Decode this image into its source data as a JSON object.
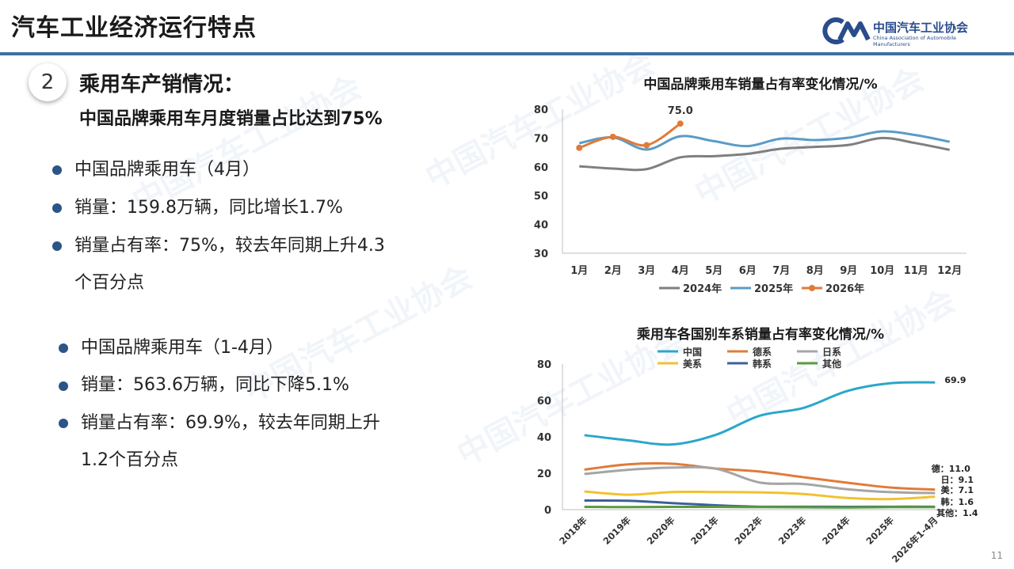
{
  "header": {
    "title": "汽车工业经济运行特点",
    "logo_cn": "中国汽车工业协会",
    "logo_en": "China Association of Automobile Manufacturers"
  },
  "section": {
    "number": "2",
    "title": "乘用车产销情况：",
    "subtitle": "中国品牌乘用车月度销量占比达到75%"
  },
  "bullets_group1": [
    "中国品牌乘用车（4月）",
    "销量：159.8万辆，同比增长1.7%",
    "销量占有率：75%，较去年同期上升4.3",
    "个百分点"
  ],
  "bullets_group2": [
    "中国品牌乘用车（1-4月）",
    "销量：563.6万辆，同比下降5.1%",
    "销量占有率：69.9%，较去年同期上升",
    "1.2个百分点"
  ],
  "watermark": "中国汽车工业协会",
  "page_number": "11",
  "chart_data": [
    {
      "type": "line",
      "title": "中国品牌乘用车销量占有率变化情况/%",
      "categories": [
        "1月",
        "2月",
        "3月",
        "4月",
        "5月",
        "6月",
        "7月",
        "8月",
        "9月",
        "10月",
        "11月",
        "12月"
      ],
      "ylim": [
        30,
        80
      ],
      "yticks": [
        30,
        40,
        50,
        60,
        70,
        80
      ],
      "legend_position": "bottom",
      "series": [
        {
          "name": "2024年",
          "color": "#7f7f7f",
          "marker": false,
          "values": [
            60.2,
            59.4,
            59.2,
            63.3,
            63.7,
            64.5,
            66.3,
            66.9,
            67.6,
            70.0,
            68.2,
            65.9
          ]
        },
        {
          "name": "2025年",
          "color": "#5b9bc5",
          "marker": false,
          "values": [
            68.2,
            70.2,
            66.0,
            70.6,
            68.9,
            67.2,
            69.8,
            69.3,
            70.1,
            72.3,
            71.0,
            68.7
          ]
        },
        {
          "name": "2026年",
          "color": "#e07b39",
          "marker": true,
          "values": [
            66.6,
            70.4,
            67.5,
            75.0,
            null,
            null,
            null,
            null,
            null,
            null,
            null,
            null
          ]
        }
      ],
      "annotations": [
        {
          "series": "2026年",
          "index": 3,
          "label": "75.0"
        }
      ]
    },
    {
      "type": "line",
      "title": "乘用车各国别车系销量占有率变化情况/%",
      "categories": [
        "2018年",
        "2019年",
        "2020年",
        "2021年",
        "2022年",
        "2023年",
        "2024年",
        "2025年",
        "2026年1-4月"
      ],
      "ylim": [
        0,
        80
      ],
      "yticks": [
        0,
        20,
        40,
        60,
        80
      ],
      "legend_position": "top",
      "series": [
        {
          "name": "中国",
          "color": "#2aa7c9",
          "values": [
            40.9,
            38.1,
            35.8,
            41.1,
            51.6,
            55.9,
            65.2,
            69.5,
            69.9
          ],
          "end_label": "69.9"
        },
        {
          "name": "德系",
          "color": "#e07b39",
          "values": [
            22.0,
            24.9,
            25.2,
            22.6,
            20.9,
            17.8,
            14.8,
            12.1,
            11.0
          ],
          "end_label": "德：11.0"
        },
        {
          "name": "日系",
          "color": "#a5a5a5",
          "values": [
            19.6,
            21.9,
            23.1,
            22.5,
            14.9,
            14.1,
            11.2,
            9.6,
            9.1
          ],
          "end_label": "日：9.1"
        },
        {
          "name": "美系",
          "color": "#f2c12e",
          "values": [
            10.0,
            8.2,
            9.7,
            9.7,
            9.5,
            8.6,
            6.4,
            5.8,
            7.1
          ],
          "end_label": "美：7.1"
        },
        {
          "name": "韩系",
          "color": "#3d5f9b",
          "values": [
            5.0,
            4.9,
            3.6,
            2.4,
            1.6,
            1.6,
            1.5,
            1.6,
            1.6
          ],
          "end_label": "韩：1.6"
        },
        {
          "name": "其他",
          "color": "#5a9a3e",
          "values": [
            1.5,
            1.4,
            1.5,
            1.5,
            1.4,
            1.3,
            1.2,
            1.4,
            1.4
          ],
          "end_label": "其他：1.4"
        }
      ]
    }
  ]
}
